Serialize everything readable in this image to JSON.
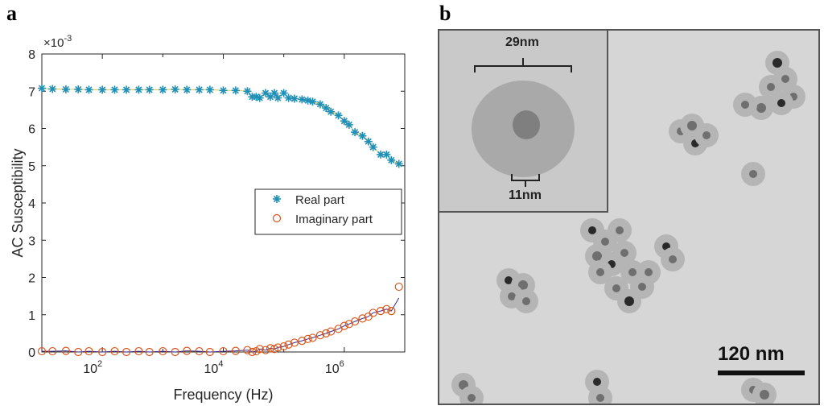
{
  "panel_a_label": "a",
  "panel_b_label": "b",
  "chart_data": {
    "type": "scatter",
    "xscale": "log",
    "xlabel": "Frequency (Hz)",
    "ylabel": "AC Susceptibility",
    "y_multiplier": "×10-3",
    "xlim": [
      10,
      10000000
    ],
    "ylim": [
      0,
      8
    ],
    "xticks": [
      "10^2",
      "10^4",
      "10^6"
    ],
    "yticks": [
      0,
      1,
      2,
      3,
      4,
      5,
      6,
      7,
      8
    ],
    "legend": [
      "Real part",
      "Imaginary part"
    ],
    "legend_position": "middle-right",
    "series": [
      {
        "name": "Real part",
        "marker": "asterisk",
        "color": "#1f8fb5",
        "x": [
          10,
          15,
          25,
          40,
          60,
          100,
          160,
          250,
          400,
          600,
          1000,
          1600,
          2500,
          4000,
          6000,
          10000,
          16000,
          25000,
          30000,
          35000,
          40000,
          50000,
          60000,
          70000,
          80000,
          100000,
          120000,
          150000,
          200000,
          250000,
          300000,
          400000,
          500000,
          600000,
          800000,
          1000000,
          1200000,
          1500000,
          2000000,
          2500000,
          3000000,
          4000000,
          5000000,
          6000000,
          8000000
        ],
        "y": [
          7.08,
          7.06,
          7.05,
          7.05,
          7.04,
          7.04,
          7.04,
          7.04,
          7.04,
          7.04,
          7.04,
          7.05,
          7.04,
          7.04,
          7.04,
          7.02,
          7.02,
          7.0,
          6.85,
          6.85,
          6.82,
          6.95,
          6.85,
          6.95,
          6.82,
          6.95,
          6.82,
          6.8,
          6.78,
          6.75,
          6.72,
          6.65,
          6.55,
          6.45,
          6.35,
          6.2,
          6.1,
          5.9,
          5.8,
          5.65,
          5.5,
          5.3,
          5.3,
          5.15,
          5.05
        ]
      },
      {
        "name": "Imaginary part",
        "marker": "circle",
        "color": "#d9541a",
        "x": [
          10,
          15,
          25,
          40,
          60,
          100,
          160,
          250,
          400,
          600,
          1000,
          1600,
          2500,
          4000,
          6000,
          10000,
          16000,
          25000,
          30000,
          35000,
          40000,
          50000,
          60000,
          70000,
          80000,
          100000,
          120000,
          150000,
          200000,
          250000,
          300000,
          400000,
          500000,
          600000,
          800000,
          1000000,
          1200000,
          1500000,
          2000000,
          2500000,
          3000000,
          4000000,
          5000000,
          6000000,
          8000000
        ],
        "y": [
          0.02,
          0.02,
          0.03,
          0.0,
          0.02,
          0.0,
          0.02,
          0.0,
          0.02,
          0.0,
          0.02,
          0.0,
          0.03,
          0.02,
          0.0,
          0.02,
          0.03,
          0.05,
          0.0,
          0.02,
          0.08,
          0.05,
          0.1,
          0.08,
          0.12,
          0.15,
          0.2,
          0.25,
          0.3,
          0.35,
          0.38,
          0.45,
          0.5,
          0.55,
          0.62,
          0.7,
          0.75,
          0.82,
          0.9,
          0.95,
          1.05,
          1.1,
          1.15,
          1.1,
          1.75
        ]
      }
    ],
    "fit_line_color": "#3b2a8a"
  },
  "tem": {
    "inset_top_label": "29nm",
    "inset_bottom_label": "11nm",
    "scale_bar_label": "120 nm"
  }
}
